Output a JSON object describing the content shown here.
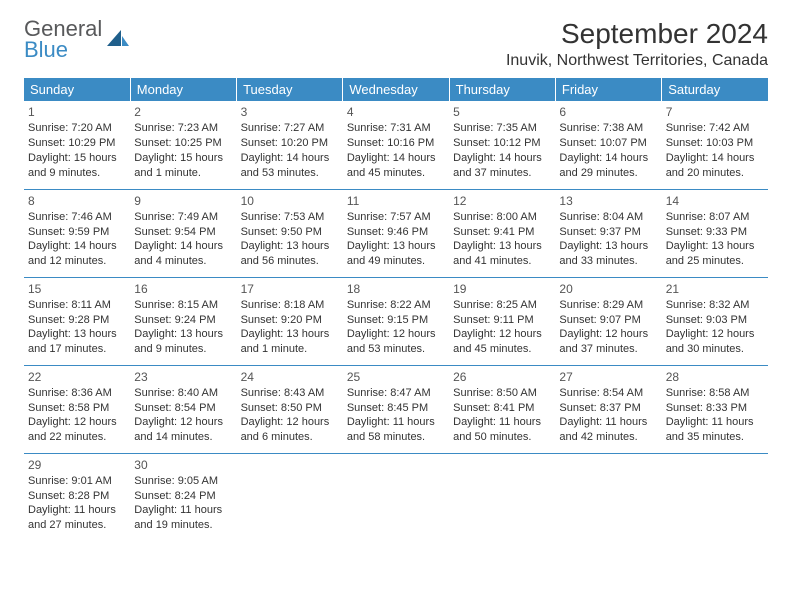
{
  "logo": {
    "general": "General",
    "blue": "Blue"
  },
  "title": "September 2024",
  "location": "Inuvik, Northwest Territories, Canada",
  "colors": {
    "header_bg": "#3b8bc4",
    "header_fg": "#ffffff",
    "rule": "#3b8bc4",
    "text": "#333333",
    "logo_gray": "#58595b",
    "logo_blue": "#3b8bc4"
  },
  "weekdays": [
    "Sunday",
    "Monday",
    "Tuesday",
    "Wednesday",
    "Thursday",
    "Friday",
    "Saturday"
  ],
  "days": [
    {
      "n": "1",
      "sr": "Sunrise: 7:20 AM",
      "ss": "Sunset: 10:29 PM",
      "dl": "Daylight: 15 hours and 9 minutes."
    },
    {
      "n": "2",
      "sr": "Sunrise: 7:23 AM",
      "ss": "Sunset: 10:25 PM",
      "dl": "Daylight: 15 hours and 1 minute."
    },
    {
      "n": "3",
      "sr": "Sunrise: 7:27 AM",
      "ss": "Sunset: 10:20 PM",
      "dl": "Daylight: 14 hours and 53 minutes."
    },
    {
      "n": "4",
      "sr": "Sunrise: 7:31 AM",
      "ss": "Sunset: 10:16 PM",
      "dl": "Daylight: 14 hours and 45 minutes."
    },
    {
      "n": "5",
      "sr": "Sunrise: 7:35 AM",
      "ss": "Sunset: 10:12 PM",
      "dl": "Daylight: 14 hours and 37 minutes."
    },
    {
      "n": "6",
      "sr": "Sunrise: 7:38 AM",
      "ss": "Sunset: 10:07 PM",
      "dl": "Daylight: 14 hours and 29 minutes."
    },
    {
      "n": "7",
      "sr": "Sunrise: 7:42 AM",
      "ss": "Sunset: 10:03 PM",
      "dl": "Daylight: 14 hours and 20 minutes."
    },
    {
      "n": "8",
      "sr": "Sunrise: 7:46 AM",
      "ss": "Sunset: 9:59 PM",
      "dl": "Daylight: 14 hours and 12 minutes."
    },
    {
      "n": "9",
      "sr": "Sunrise: 7:49 AM",
      "ss": "Sunset: 9:54 PM",
      "dl": "Daylight: 14 hours and 4 minutes."
    },
    {
      "n": "10",
      "sr": "Sunrise: 7:53 AM",
      "ss": "Sunset: 9:50 PM",
      "dl": "Daylight: 13 hours and 56 minutes."
    },
    {
      "n": "11",
      "sr": "Sunrise: 7:57 AM",
      "ss": "Sunset: 9:46 PM",
      "dl": "Daylight: 13 hours and 49 minutes."
    },
    {
      "n": "12",
      "sr": "Sunrise: 8:00 AM",
      "ss": "Sunset: 9:41 PM",
      "dl": "Daylight: 13 hours and 41 minutes."
    },
    {
      "n": "13",
      "sr": "Sunrise: 8:04 AM",
      "ss": "Sunset: 9:37 PM",
      "dl": "Daylight: 13 hours and 33 minutes."
    },
    {
      "n": "14",
      "sr": "Sunrise: 8:07 AM",
      "ss": "Sunset: 9:33 PM",
      "dl": "Daylight: 13 hours and 25 minutes."
    },
    {
      "n": "15",
      "sr": "Sunrise: 8:11 AM",
      "ss": "Sunset: 9:28 PM",
      "dl": "Daylight: 13 hours and 17 minutes."
    },
    {
      "n": "16",
      "sr": "Sunrise: 8:15 AM",
      "ss": "Sunset: 9:24 PM",
      "dl": "Daylight: 13 hours and 9 minutes."
    },
    {
      "n": "17",
      "sr": "Sunrise: 8:18 AM",
      "ss": "Sunset: 9:20 PM",
      "dl": "Daylight: 13 hours and 1 minute."
    },
    {
      "n": "18",
      "sr": "Sunrise: 8:22 AM",
      "ss": "Sunset: 9:15 PM",
      "dl": "Daylight: 12 hours and 53 minutes."
    },
    {
      "n": "19",
      "sr": "Sunrise: 8:25 AM",
      "ss": "Sunset: 9:11 PM",
      "dl": "Daylight: 12 hours and 45 minutes."
    },
    {
      "n": "20",
      "sr": "Sunrise: 8:29 AM",
      "ss": "Sunset: 9:07 PM",
      "dl": "Daylight: 12 hours and 37 minutes."
    },
    {
      "n": "21",
      "sr": "Sunrise: 8:32 AM",
      "ss": "Sunset: 9:03 PM",
      "dl": "Daylight: 12 hours and 30 minutes."
    },
    {
      "n": "22",
      "sr": "Sunrise: 8:36 AM",
      "ss": "Sunset: 8:58 PM",
      "dl": "Daylight: 12 hours and 22 minutes."
    },
    {
      "n": "23",
      "sr": "Sunrise: 8:40 AM",
      "ss": "Sunset: 8:54 PM",
      "dl": "Daylight: 12 hours and 14 minutes."
    },
    {
      "n": "24",
      "sr": "Sunrise: 8:43 AM",
      "ss": "Sunset: 8:50 PM",
      "dl": "Daylight: 12 hours and 6 minutes."
    },
    {
      "n": "25",
      "sr": "Sunrise: 8:47 AM",
      "ss": "Sunset: 8:45 PM",
      "dl": "Daylight: 11 hours and 58 minutes."
    },
    {
      "n": "26",
      "sr": "Sunrise: 8:50 AM",
      "ss": "Sunset: 8:41 PM",
      "dl": "Daylight: 11 hours and 50 minutes."
    },
    {
      "n": "27",
      "sr": "Sunrise: 8:54 AM",
      "ss": "Sunset: 8:37 PM",
      "dl": "Daylight: 11 hours and 42 minutes."
    },
    {
      "n": "28",
      "sr": "Sunrise: 8:58 AM",
      "ss": "Sunset: 8:33 PM",
      "dl": "Daylight: 11 hours and 35 minutes."
    },
    {
      "n": "29",
      "sr": "Sunrise: 9:01 AM",
      "ss": "Sunset: 8:28 PM",
      "dl": "Daylight: 11 hours and 27 minutes."
    },
    {
      "n": "30",
      "sr": "Sunrise: 9:05 AM",
      "ss": "Sunset: 8:24 PM",
      "dl": "Daylight: 11 hours and 19 minutes."
    }
  ]
}
